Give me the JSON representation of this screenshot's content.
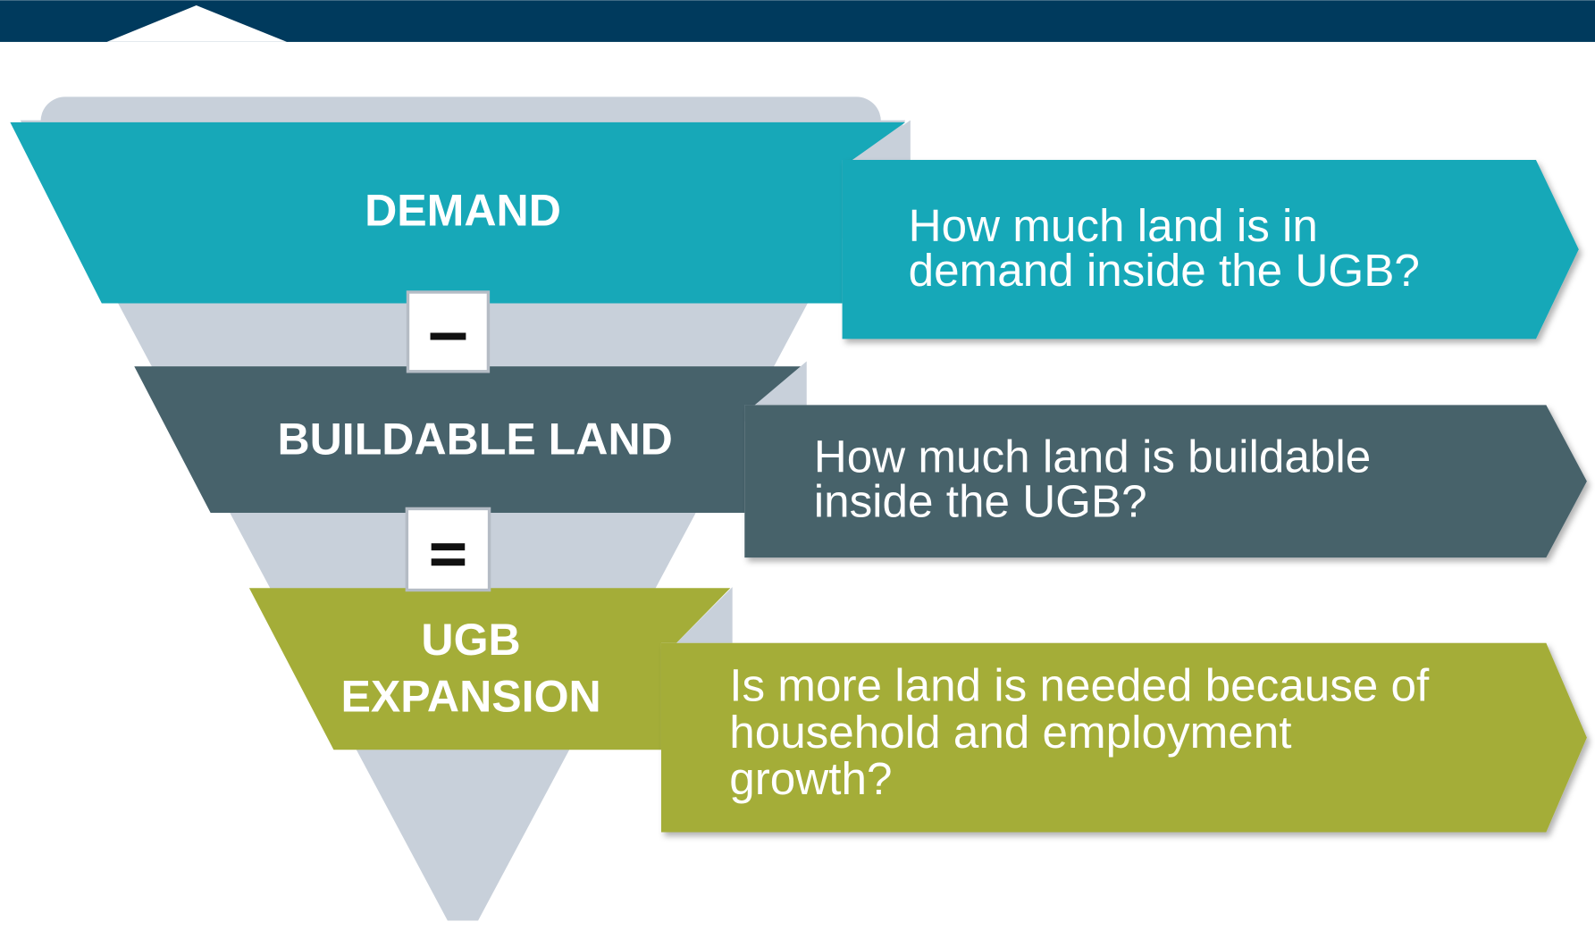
{
  "levels": [
    {
      "label_lines": [
        "DEMAND"
      ],
      "question_lines": [
        "How much land is in",
        "demand inside the UGB?"
      ]
    },
    {
      "label_lines": [
        "BUILDABLE LAND"
      ],
      "question_lines": [
        "How much land is buildable",
        "inside the UGB?"
      ]
    },
    {
      "label_lines": [
        "UGB",
        "EXPANSION"
      ],
      "question_lines": [
        "Is more land is needed because of",
        "household and employment",
        "growth?"
      ]
    }
  ]
}
